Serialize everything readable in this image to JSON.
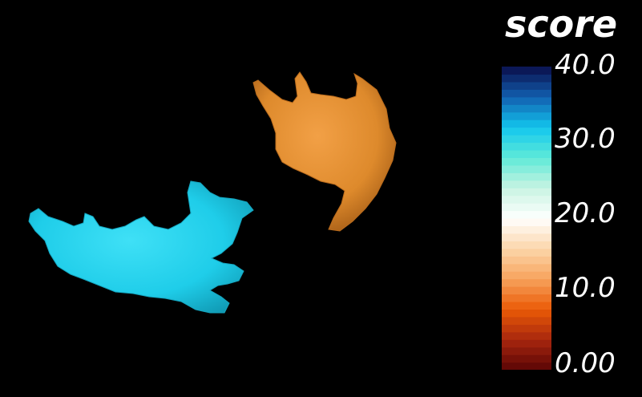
{
  "legend": {
    "title": "score",
    "ticks": [
      "40.0",
      "30.0",
      "20.0",
      "10.0",
      "0.00"
    ],
    "range": [
      0,
      40
    ],
    "colormap_stops": [
      {
        "value": 0,
        "color": "#5a0505"
      },
      {
        "value": 4,
        "color": "#a8260e"
      },
      {
        "value": 8,
        "color": "#ea5a06"
      },
      {
        "value": 12,
        "color": "#f7a25c"
      },
      {
        "value": 16,
        "color": "#fbd6aa"
      },
      {
        "value": 20,
        "color": "#ffffff"
      },
      {
        "value": 24,
        "color": "#c8f3e2"
      },
      {
        "value": 28,
        "color": "#5fead8"
      },
      {
        "value": 32,
        "color": "#12c6ee"
      },
      {
        "value": 36,
        "color": "#125fb0"
      },
      {
        "value": 40,
        "color": "#0a0e4a"
      }
    ]
  },
  "objects": [
    {
      "name": "cyan-surface",
      "color": "#1dd0ec"
    },
    {
      "name": "orange-surface",
      "color": "#df8a2c"
    }
  ]
}
